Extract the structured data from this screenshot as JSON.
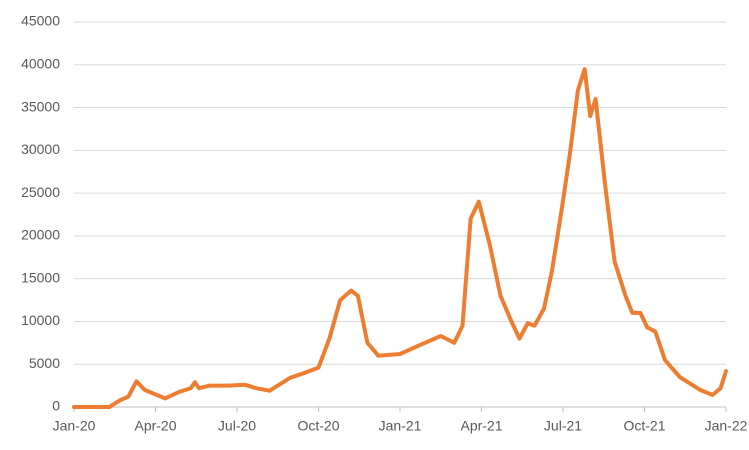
{
  "chart_data": {
    "type": "line",
    "color": "#ed7d31",
    "grid": true,
    "x": [
      0,
      1.3,
      1.7,
      2.0,
      2.3,
      2.6,
      3.35,
      3.9,
      4.3,
      4.45,
      4.6,
      5.0,
      5.7,
      6.3,
      6.7,
      7.2,
      7.95,
      8.5,
      9.0,
      9.4,
      9.8,
      10.2,
      10.45,
      10.8,
      11.2,
      12.0,
      12.7,
      13.5,
      14.0,
      14.3,
      14.6,
      14.9,
      15.3,
      15.7,
      16.1,
      16.4,
      16.7,
      16.95,
      17.3,
      17.6,
      17.95,
      18.25,
      18.55,
      18.8,
      19.0,
      19.2,
      19.55,
      19.9,
      20.3,
      20.55,
      20.85,
      21.1,
      21.4,
      21.75,
      22.3,
      23.05,
      23.5,
      23.8,
      24.0
    ],
    "values": [
      0,
      0,
      800,
      1200,
      3000,
      2000,
      1000,
      1800,
      2200,
      2900,
      2200,
      2500,
      2500,
      2600,
      2200,
      1900,
      3400,
      4000,
      4600,
      8000,
      12500,
      13600,
      13000,
      7500,
      6000,
      6200,
      7200,
      8300,
      7500,
      9500,
      22000,
      24000,
      19000,
      13000,
      10000,
      8000,
      9800,
      9500,
      11500,
      16000,
      23000,
      29500,
      37000,
      39500,
      34000,
      36000,
      26000,
      17000,
      13000,
      11000,
      11000,
      9300,
      8800,
      5500,
      3500,
      2000,
      1400,
      2200,
      4200
    ],
    "xlim": [
      0,
      24
    ],
    "xticks": [
      {
        "value": 0,
        "label": "Jan-20"
      },
      {
        "value": 3,
        "label": "Apr-20"
      },
      {
        "value": 6,
        "label": "Jul-20"
      },
      {
        "value": 9,
        "label": "Oct-20"
      },
      {
        "value": 12,
        "label": "Jan-21"
      },
      {
        "value": 15,
        "label": "Apr-21"
      },
      {
        "value": 18,
        "label": "Jul-21"
      },
      {
        "value": 21,
        "label": "Oct-21"
      },
      {
        "value": 24,
        "label": "Jan-22"
      }
    ],
    "ylim": [
      0,
      45000
    ],
    "yticks": [
      0,
      5000,
      10000,
      15000,
      20000,
      25000,
      30000,
      35000,
      40000,
      45000
    ]
  }
}
